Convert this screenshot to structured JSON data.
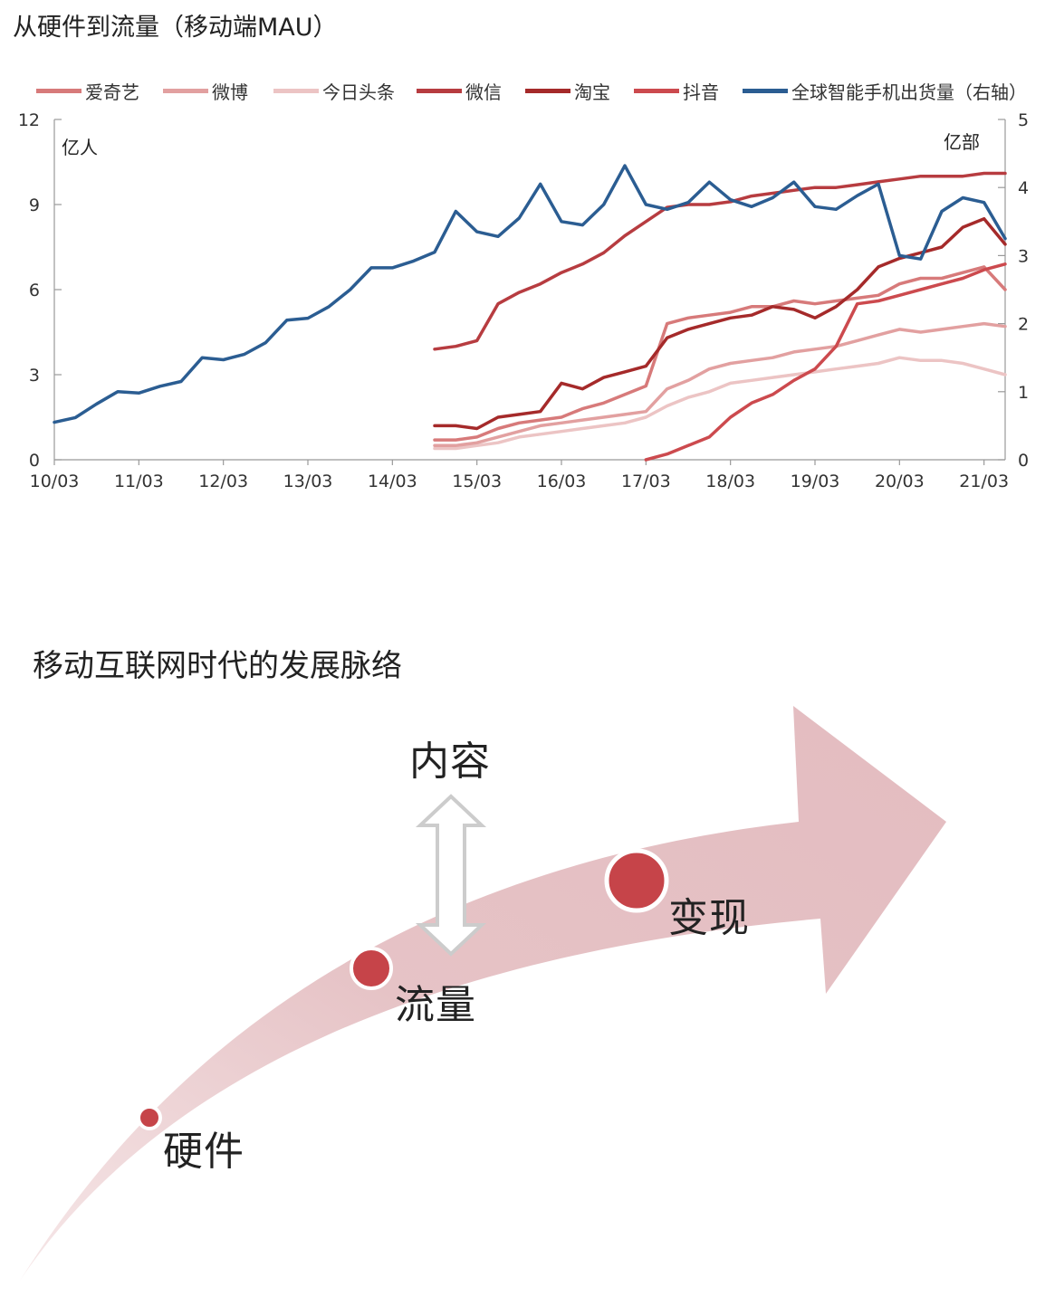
{
  "chart_title": "从硬件到流量（移动端MAU）",
  "chart_data": {
    "type": "line",
    "x": [
      "10/03",
      "10/06",
      "10/09",
      "10/12",
      "11/03",
      "11/06",
      "11/09",
      "11/12",
      "12/03",
      "12/06",
      "12/09",
      "12/12",
      "13/03",
      "13/06",
      "13/09",
      "13/12",
      "14/03",
      "14/06",
      "14/09",
      "14/12",
      "15/03",
      "15/06",
      "15/09",
      "15/12",
      "16/03",
      "16/06",
      "16/09",
      "16/12",
      "17/03",
      "17/06",
      "17/09",
      "17/12",
      "18/03",
      "18/06",
      "18/09",
      "18/12",
      "19/03",
      "19/06",
      "19/09",
      "19/12",
      "20/03",
      "20/06",
      "20/09",
      "20/12",
      "21/03",
      "21/06"
    ],
    "x_ticks": [
      "10/03",
      "11/03",
      "12/03",
      "13/03",
      "14/03",
      "15/03",
      "16/03",
      "17/03",
      "18/03",
      "19/03",
      "20/03",
      "21/03"
    ],
    "left_axis": {
      "unit": "亿人",
      "range": [
        0,
        12
      ],
      "ticks": [
        "0",
        "3",
        "6",
        "9",
        "12"
      ]
    },
    "right_axis": {
      "unit": "亿部",
      "range": [
        0,
        5
      ],
      "ticks": [
        "0",
        "1",
        "2",
        "3",
        "4",
        "5"
      ]
    },
    "legend_placement": "top",
    "series": [
      {
        "name": "爱奇艺",
        "color": "#d77a7a",
        "axis": "left",
        "values": [
          null,
          null,
          null,
          null,
          null,
          null,
          null,
          null,
          null,
          null,
          null,
          null,
          null,
          null,
          null,
          null,
          null,
          null,
          0.7,
          0.7,
          0.8,
          1.1,
          1.3,
          1.4,
          1.5,
          1.8,
          2.0,
          2.3,
          2.6,
          4.8,
          5.0,
          5.1,
          5.2,
          5.4,
          5.4,
          5.6,
          5.5,
          5.6,
          5.7,
          5.8,
          6.2,
          6.4,
          6.4,
          6.6,
          6.8,
          6.0
        ]
      },
      {
        "name": "微博",
        "color": "#e2a0a0",
        "axis": "left",
        "values": [
          null,
          null,
          null,
          null,
          null,
          null,
          null,
          null,
          null,
          null,
          null,
          null,
          null,
          null,
          null,
          null,
          null,
          null,
          0.5,
          0.5,
          0.6,
          0.8,
          1.0,
          1.2,
          1.3,
          1.4,
          1.5,
          1.6,
          1.7,
          2.5,
          2.8,
          3.2,
          3.4,
          3.5,
          3.6,
          3.8,
          3.9,
          4.0,
          4.2,
          4.4,
          4.6,
          4.5,
          4.6,
          4.7,
          4.8,
          4.7
        ]
      },
      {
        "name": "今日头条",
        "color": "#ecc4c4",
        "axis": "left",
        "values": [
          null,
          null,
          null,
          null,
          null,
          null,
          null,
          null,
          null,
          null,
          null,
          null,
          null,
          null,
          null,
          null,
          null,
          null,
          0.4,
          0.4,
          0.5,
          0.6,
          0.8,
          0.9,
          1.0,
          1.1,
          1.2,
          1.3,
          1.5,
          1.9,
          2.2,
          2.4,
          2.7,
          2.8,
          2.9,
          3.0,
          3.1,
          3.2,
          3.3,
          3.4,
          3.6,
          3.5,
          3.5,
          3.4,
          3.2,
          3.0
        ]
      },
      {
        "name": "微信",
        "color": "#b73c40",
        "axis": "left",
        "values": [
          null,
          null,
          null,
          null,
          null,
          null,
          null,
          null,
          null,
          null,
          null,
          null,
          null,
          null,
          null,
          null,
          null,
          null,
          3.9,
          4.0,
          4.2,
          5.5,
          5.9,
          6.2,
          6.6,
          6.9,
          7.3,
          7.9,
          8.4,
          8.9,
          9.0,
          9.0,
          9.1,
          9.3,
          9.4,
          9.5,
          9.6,
          9.6,
          9.7,
          9.8,
          9.9,
          10.0,
          10.0,
          10.0,
          10.1,
          10.1
        ]
      },
      {
        "name": "淘宝",
        "color": "#a52a2a",
        "axis": "left",
        "values": [
          null,
          null,
          null,
          null,
          null,
          null,
          null,
          null,
          null,
          null,
          null,
          null,
          null,
          null,
          null,
          null,
          null,
          null,
          1.2,
          1.2,
          1.1,
          1.5,
          1.6,
          1.7,
          2.7,
          2.5,
          2.9,
          3.1,
          3.3,
          4.3,
          4.6,
          4.8,
          5.0,
          5.1,
          5.4,
          5.3,
          5.0,
          5.4,
          6.0,
          6.8,
          7.1,
          7.3,
          7.5,
          8.2,
          8.5,
          7.6
        ]
      },
      {
        "name": "抖音",
        "color": "#cc4a4e",
        "axis": "left",
        "values": [
          null,
          null,
          null,
          null,
          null,
          null,
          null,
          null,
          null,
          null,
          null,
          null,
          null,
          null,
          null,
          null,
          null,
          null,
          null,
          null,
          null,
          null,
          null,
          null,
          null,
          null,
          null,
          null,
          0.0,
          0.2,
          0.5,
          0.8,
          1.5,
          2.0,
          2.3,
          2.8,
          3.2,
          4.0,
          5.5,
          5.6,
          5.8,
          6.0,
          6.2,
          6.4,
          6.7,
          6.9
        ]
      },
      {
        "name": "全球智能手机出货量（右轴）",
        "color": "#2b5d92",
        "axis": "right",
        "values": [
          0.55,
          0.62,
          0.82,
          1.0,
          0.98,
          1.08,
          1.15,
          1.5,
          1.47,
          1.55,
          1.72,
          2.05,
          2.08,
          2.25,
          2.5,
          2.82,
          2.82,
          2.92,
          3.05,
          3.65,
          3.35,
          3.28,
          3.55,
          4.05,
          3.5,
          3.45,
          3.75,
          4.32,
          3.75,
          3.68,
          3.78,
          4.08,
          3.82,
          3.72,
          3.85,
          4.08,
          3.72,
          3.68,
          3.88,
          4.05,
          3.0,
          2.95,
          3.65,
          3.85,
          3.78,
          3.25
        ]
      }
    ]
  },
  "diagram": {
    "title": "移动互联网时代的发展脉络",
    "stages": {
      "hardware": "硬件",
      "traffic": "流量",
      "monetize": "变现",
      "content": "内容"
    }
  },
  "colors": {
    "arrow_fill": "#e6c3c6",
    "dot_fill": "#c64449",
    "double_arrow": "#d9d9d9"
  }
}
